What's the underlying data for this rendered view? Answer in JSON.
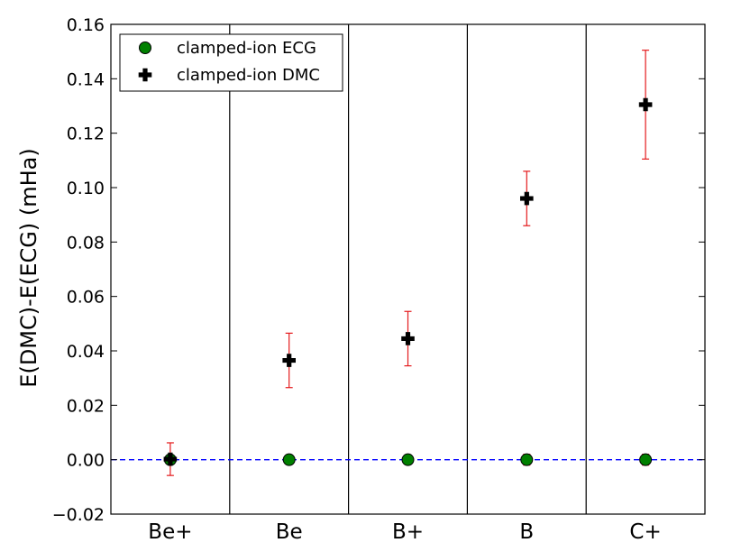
{
  "chart_data": {
    "type": "scatter",
    "categories": [
      "Be+",
      "Be",
      "B+",
      "B",
      "C+"
    ],
    "ylabel": "E(DMC)-E(ECG) (mHa)",
    "xlabel": "",
    "ylim": [
      -0.02,
      0.16
    ],
    "yticks": [
      "−0.02",
      "0.00",
      "0.02",
      "0.04",
      "0.06",
      "0.08",
      "0.10",
      "0.12",
      "0.14",
      "0.16"
    ],
    "ytick_values": [
      -0.02,
      0.0,
      0.02,
      0.04,
      0.06,
      0.08,
      0.1,
      0.12,
      0.14,
      0.16
    ],
    "reference_line": {
      "y": 0.0,
      "style": "dashed",
      "color": "#0000ff"
    },
    "grid": false,
    "legend_position": "top-left",
    "series": [
      {
        "name": "clamped-ion ECG",
        "marker": "circle",
        "color": "#008000",
        "values": [
          0.0,
          0.0,
          0.0,
          0.0,
          0.0
        ],
        "errors": [
          0.0,
          0.0,
          0.0,
          0.002,
          0.002
        ]
      },
      {
        "name": "clamped-ion DMC",
        "marker": "plus",
        "color": "#000000",
        "values": [
          0.0002,
          0.0365,
          0.0445,
          0.096,
          0.1305
        ],
        "errors": [
          0.006,
          0.01,
          0.01,
          0.01,
          0.02
        ],
        "error_color": "#e41a1c"
      }
    ]
  }
}
